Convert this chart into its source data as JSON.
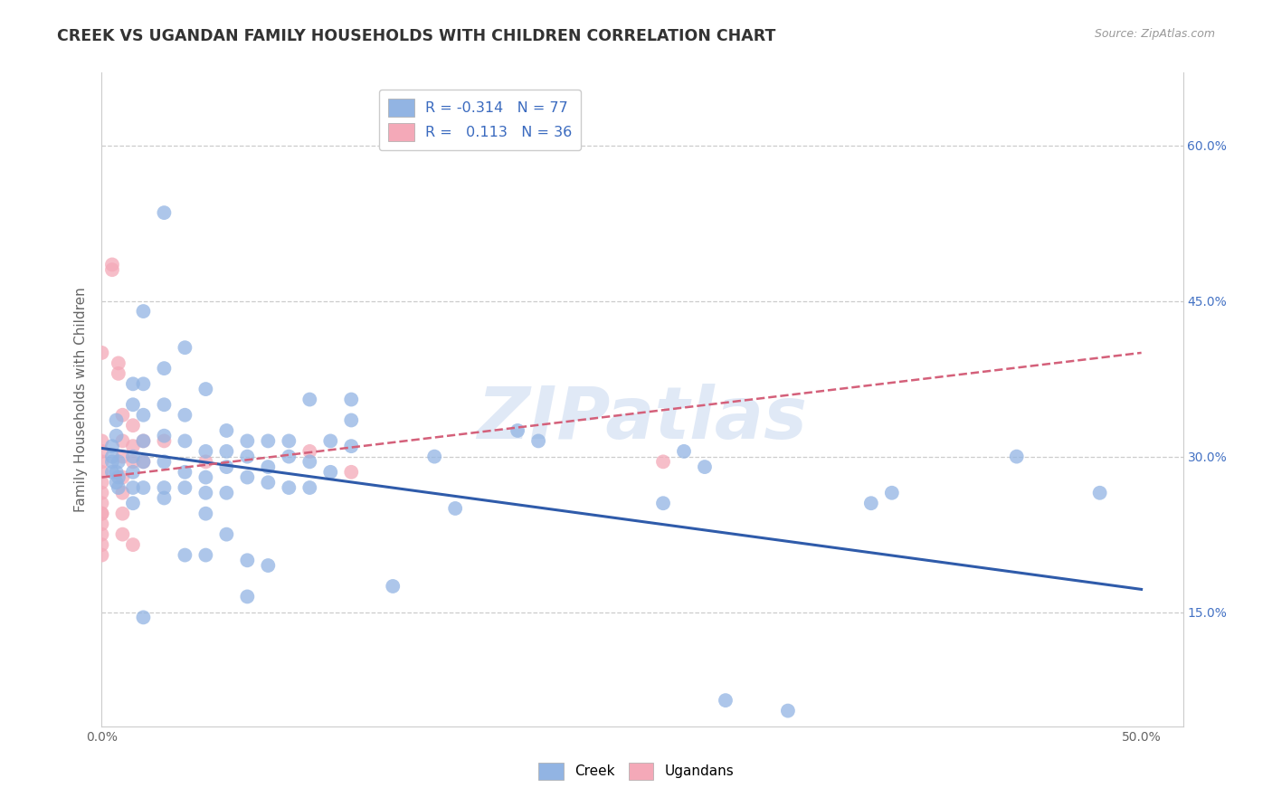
{
  "title": "CREEK VS UGANDAN FAMILY HOUSEHOLDS WITH CHILDREN CORRELATION CHART",
  "source": "Source: ZipAtlas.com",
  "ylabel": "Family Households with Children",
  "xlim": [
    0.0,
    0.52
  ],
  "ylim": [
    0.04,
    0.67
  ],
  "x_ticks": [
    0.0,
    0.1,
    0.2,
    0.3,
    0.4,
    0.5
  ],
  "x_tick_labels": [
    "0.0%",
    "",
    "",
    "",
    "",
    "50.0%"
  ],
  "y_ticks": [
    0.15,
    0.3,
    0.45,
    0.6
  ],
  "y_tick_labels": [
    "15.0%",
    "30.0%",
    "45.0%",
    "60.0%"
  ],
  "creek_color": "#92b4e3",
  "ugandan_color": "#f4a9b8",
  "creek_line_color": "#2f5baa",
  "ugandan_line_color": "#d4607a",
  "background_color": "#ffffff",
  "grid_color": "#cccccc",
  "watermark_text": "ZIPatlas",
  "creek_points": [
    [
      0.005,
      0.31
    ],
    [
      0.005,
      0.3
    ],
    [
      0.005,
      0.295
    ],
    [
      0.005,
      0.285
    ],
    [
      0.007,
      0.335
    ],
    [
      0.007,
      0.32
    ],
    [
      0.007,
      0.285
    ],
    [
      0.007,
      0.275
    ],
    [
      0.008,
      0.295
    ],
    [
      0.008,
      0.28
    ],
    [
      0.008,
      0.27
    ],
    [
      0.015,
      0.37
    ],
    [
      0.015,
      0.35
    ],
    [
      0.015,
      0.3
    ],
    [
      0.015,
      0.285
    ],
    [
      0.015,
      0.27
    ],
    [
      0.015,
      0.255
    ],
    [
      0.02,
      0.44
    ],
    [
      0.02,
      0.37
    ],
    [
      0.02,
      0.34
    ],
    [
      0.02,
      0.315
    ],
    [
      0.02,
      0.295
    ],
    [
      0.02,
      0.27
    ],
    [
      0.02,
      0.145
    ],
    [
      0.03,
      0.535
    ],
    [
      0.03,
      0.385
    ],
    [
      0.03,
      0.35
    ],
    [
      0.03,
      0.32
    ],
    [
      0.03,
      0.295
    ],
    [
      0.03,
      0.27
    ],
    [
      0.03,
      0.26
    ],
    [
      0.04,
      0.405
    ],
    [
      0.04,
      0.34
    ],
    [
      0.04,
      0.315
    ],
    [
      0.04,
      0.285
    ],
    [
      0.04,
      0.27
    ],
    [
      0.04,
      0.205
    ],
    [
      0.05,
      0.365
    ],
    [
      0.05,
      0.305
    ],
    [
      0.05,
      0.28
    ],
    [
      0.05,
      0.265
    ],
    [
      0.05,
      0.245
    ],
    [
      0.05,
      0.205
    ],
    [
      0.06,
      0.325
    ],
    [
      0.06,
      0.305
    ],
    [
      0.06,
      0.29
    ],
    [
      0.06,
      0.265
    ],
    [
      0.06,
      0.225
    ],
    [
      0.07,
      0.315
    ],
    [
      0.07,
      0.3
    ],
    [
      0.07,
      0.28
    ],
    [
      0.07,
      0.2
    ],
    [
      0.07,
      0.165
    ],
    [
      0.08,
      0.315
    ],
    [
      0.08,
      0.29
    ],
    [
      0.08,
      0.275
    ],
    [
      0.08,
      0.195
    ],
    [
      0.09,
      0.315
    ],
    [
      0.09,
      0.3
    ],
    [
      0.09,
      0.27
    ],
    [
      0.1,
      0.355
    ],
    [
      0.1,
      0.295
    ],
    [
      0.1,
      0.27
    ],
    [
      0.11,
      0.315
    ],
    [
      0.11,
      0.285
    ],
    [
      0.12,
      0.355
    ],
    [
      0.12,
      0.335
    ],
    [
      0.12,
      0.31
    ],
    [
      0.14,
      0.175
    ],
    [
      0.16,
      0.3
    ],
    [
      0.17,
      0.25
    ],
    [
      0.2,
      0.325
    ],
    [
      0.21,
      0.315
    ],
    [
      0.27,
      0.255
    ],
    [
      0.28,
      0.305
    ],
    [
      0.29,
      0.29
    ],
    [
      0.37,
      0.255
    ],
    [
      0.38,
      0.265
    ],
    [
      0.44,
      0.3
    ],
    [
      0.48,
      0.265
    ],
    [
      0.3,
      0.065
    ],
    [
      0.33,
      0.055
    ]
  ],
  "ugandan_points": [
    [
      0.0,
      0.4
    ],
    [
      0.0,
      0.315
    ],
    [
      0.0,
      0.305
    ],
    [
      0.0,
      0.295
    ],
    [
      0.0,
      0.285
    ],
    [
      0.0,
      0.275
    ],
    [
      0.0,
      0.265
    ],
    [
      0.0,
      0.255
    ],
    [
      0.0,
      0.245
    ],
    [
      0.0,
      0.235
    ],
    [
      0.0,
      0.225
    ],
    [
      0.0,
      0.215
    ],
    [
      0.0,
      0.205
    ],
    [
      0.0,
      0.245
    ],
    [
      0.005,
      0.485
    ],
    [
      0.005,
      0.48
    ],
    [
      0.008,
      0.39
    ],
    [
      0.008,
      0.38
    ],
    [
      0.01,
      0.34
    ],
    [
      0.01,
      0.315
    ],
    [
      0.01,
      0.3
    ],
    [
      0.01,
      0.28
    ],
    [
      0.01,
      0.265
    ],
    [
      0.01,
      0.245
    ],
    [
      0.01,
      0.225
    ],
    [
      0.015,
      0.33
    ],
    [
      0.015,
      0.31
    ],
    [
      0.015,
      0.295
    ],
    [
      0.015,
      0.215
    ],
    [
      0.02,
      0.315
    ],
    [
      0.02,
      0.295
    ],
    [
      0.03,
      0.315
    ],
    [
      0.05,
      0.295
    ],
    [
      0.1,
      0.305
    ],
    [
      0.12,
      0.285
    ],
    [
      0.27,
      0.295
    ]
  ]
}
